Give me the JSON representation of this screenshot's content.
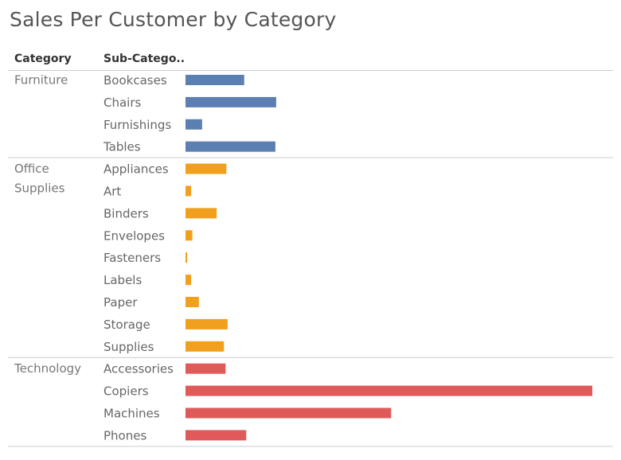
{
  "chart_data": {
    "type": "bar",
    "orientation": "horizontal",
    "title": "Sales Per Customer by Category",
    "column_headers": [
      "Category",
      "Sub-Catego.."
    ],
    "grid": false,
    "groups": [
      {
        "category": [
          "Furniture"
        ],
        "color": "#5b7fb0",
        "items": [
          {
            "subcategory": "Bookcases",
            "value": 145
          },
          {
            "subcategory": "Chairs",
            "value": 224
          },
          {
            "subcategory": "Furnishings",
            "value": 41
          },
          {
            "subcategory": "Tables",
            "value": 222
          }
        ]
      },
      {
        "category": [
          "Office",
          "Supplies"
        ],
        "color": "#f0a01e",
        "items": [
          {
            "subcategory": "Appliances",
            "value": 101
          },
          {
            "subcategory": "Art",
            "value": 14
          },
          {
            "subcategory": "Binders",
            "value": 77
          },
          {
            "subcategory": "Envelopes",
            "value": 17
          },
          {
            "subcategory": "Fasteners",
            "value": 4
          },
          {
            "subcategory": "Labels",
            "value": 14
          },
          {
            "subcategory": "Paper",
            "value": 33
          },
          {
            "subcategory": "Storage",
            "value": 104
          },
          {
            "subcategory": "Supplies",
            "value": 95
          }
        ]
      },
      {
        "category": [
          "Technology"
        ],
        "color": "#e05a5a",
        "items": [
          {
            "subcategory": "Accessories",
            "value": 99
          },
          {
            "subcategory": "Copiers",
            "value": 1005
          },
          {
            "subcategory": "Machines",
            "value": 508
          },
          {
            "subcategory": "Phones",
            "value": 150
          }
        ]
      }
    ],
    "xlim": [
      0,
      1005
    ]
  }
}
